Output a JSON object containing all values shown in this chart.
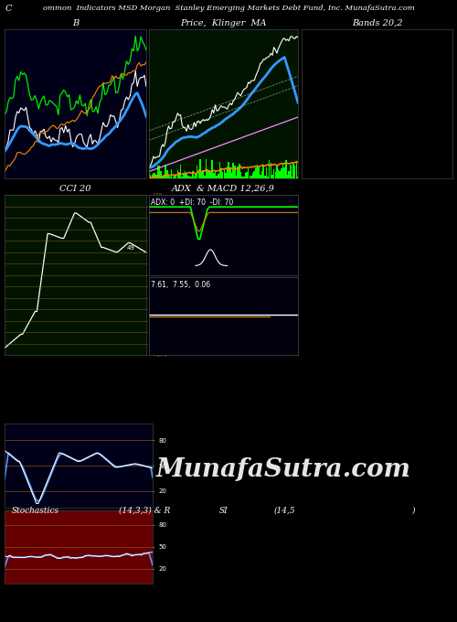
{
  "bg_color": "#000000",
  "panel_bg_dark_blue": "#000018",
  "panel_bg_dark_green": "#001400",
  "panel_bg_macd": "#00000e",
  "title_text": "ommon  Indicators MSD Morgan  Stanley Emerging Markets Debt Fund, Inc. MunafaSutra.com",
  "title_left": "C",
  "label_B": "B",
  "label_price": "Price,  Klinger  MA",
  "label_bands": "Bands 20,2",
  "label_cci": "CCI 20",
  "label_adx": "ADX  & MACD 12,26,9",
  "label_adx_values": "ADX: 0  +DI: 70  -DI: 70",
  "label_macd_values": "7.61,  7.55,  0.06",
  "label_stoch": "Stochastics",
  "label_stoch_params": "(14,3,3) & R",
  "label_si": "SI",
  "label_si_params": "(14,5",
  "label_si_end": ")",
  "watermark": "MunafaSutra.com",
  "grid_color_cci": "#8B6914",
  "grid_color_stoch": "#8B5010"
}
